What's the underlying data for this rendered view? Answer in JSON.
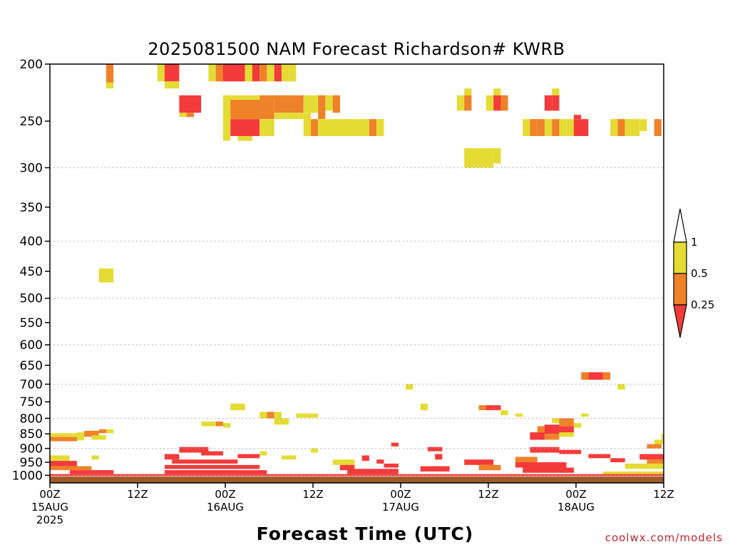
{
  "chart_data": {
    "type": "heatmap",
    "title": "2025081500 NAM Forecast Richardson# KWRB",
    "xlabel": "Forecast Time (UTC)",
    "ylabel": "",
    "y_scale": "log-pressure (hPa), inverted",
    "ylim": [
      1030,
      200
    ],
    "xlim_hours": [
      0,
      84
    ],
    "grid": "dotted horizontal lines at 300, 400, 500, 600, 700, 800, 900, 1000 hPa",
    "y_ticks": [
      200,
      250,
      300,
      350,
      400,
      450,
      500,
      550,
      600,
      650,
      700,
      750,
      800,
      850,
      900,
      950,
      1000
    ],
    "y_tick_labels": [
      "200",
      "250",
      "300",
      "350",
      "400",
      "450",
      "500",
      "550",
      "600",
      "650",
      "700",
      "750",
      "800",
      "850",
      "900",
      "950",
      "1000"
    ],
    "x_ticks": [
      {
        "hour": 0,
        "line1": "00Z",
        "line2": "15AUG",
        "line3": "2025"
      },
      {
        "hour": 12,
        "line1": "12Z",
        "line2": "",
        "line3": ""
      },
      {
        "hour": 24,
        "line1": "00Z",
        "line2": "16AUG",
        "line3": ""
      },
      {
        "hour": 36,
        "line1": "12Z",
        "line2": "",
        "line3": ""
      },
      {
        "hour": 48,
        "line1": "00Z",
        "line2": "17AUG",
        "line3": ""
      },
      {
        "hour": 60,
        "line1": "12Z",
        "line2": "",
        "line3": ""
      },
      {
        "hour": 72,
        "line1": "00Z",
        "line2": "18AUG",
        "line3": ""
      },
      {
        "hour": 84,
        "line1": "12Z",
        "line2": "",
        "line3": ""
      }
    ],
    "colorbar": {
      "levels": [
        {
          "label": "1",
          "value": 1
        },
        {
          "label": "0.5",
          "value": 0.5
        },
        {
          "label": "0.25",
          "value": 0.25
        }
      ],
      "bins": [
        {
          "range": "< 0.25",
          "color": "#f43b3b"
        },
        {
          "range": "0.25 - 0.5",
          "color": "#ef8129"
        },
        {
          "range": "0.5 - 1",
          "color": "#e4dc34"
        },
        {
          "range": "> 1",
          "color": "#ffffff"
        }
      ]
    },
    "ground": {
      "color": "#9e5a28",
      "from_hpa": 1005
    },
    "cells": [
      {
        "t0": 7.7,
        "t1": 8.7,
        "p0": 200,
        "p1": 215,
        "c": "o"
      },
      {
        "t0": 7.7,
        "t1": 8.7,
        "p0": 215,
        "p1": 220,
        "c": "y"
      },
      {
        "t0": 14.7,
        "t1": 15.7,
        "p0": 200,
        "p1": 214,
        "c": "y"
      },
      {
        "t0": 15.7,
        "t1": 17.7,
        "p0": 200,
        "p1": 214,
        "c": "r"
      },
      {
        "t0": 15.7,
        "t1": 17.7,
        "p0": 214,
        "p1": 220,
        "c": "y"
      },
      {
        "t0": 17.7,
        "t1": 20.7,
        "p0": 226,
        "p1": 242,
        "c": "r"
      },
      {
        "t0": 17.7,
        "t1": 18.7,
        "p0": 242,
        "p1": 246,
        "c": "y"
      },
      {
        "t0": 18.7,
        "t1": 19.7,
        "p0": 242,
        "p1": 246,
        "c": "o"
      },
      {
        "t0": 21.7,
        "t1": 22.7,
        "p0": 200,
        "p1": 214,
        "c": "y"
      },
      {
        "t0": 22.7,
        "t1": 23.7,
        "p0": 200,
        "p1": 214,
        "c": "o"
      },
      {
        "t0": 23.7,
        "t1": 26.7,
        "p0": 200,
        "p1": 214,
        "c": "r"
      },
      {
        "t0": 26.7,
        "t1": 27.7,
        "p0": 200,
        "p1": 214,
        "c": "y"
      },
      {
        "t0": 27.7,
        "t1": 28.7,
        "p0": 200,
        "p1": 214,
        "c": "r"
      },
      {
        "t0": 28.7,
        "t1": 29.7,
        "p0": 200,
        "p1": 214,
        "c": "o"
      },
      {
        "t0": 29.7,
        "t1": 30.7,
        "p0": 200,
        "p1": 214,
        "c": "y"
      },
      {
        "t0": 30.7,
        "t1": 31.7,
        "p0": 200,
        "p1": 214,
        "c": "r"
      },
      {
        "t0": 31.7,
        "t1": 32.7,
        "p0": 200,
        "p1": 214,
        "c": "y"
      },
      {
        "t0": 32.7,
        "t1": 33.7,
        "p0": 200,
        "p1": 214,
        "c": "y"
      },
      {
        "t0": 23.7,
        "t1": 24.7,
        "p0": 226,
        "p1": 270,
        "c": "y"
      },
      {
        "t0": 24.7,
        "t1": 28.7,
        "p0": 226,
        "p1": 230,
        "c": "y"
      },
      {
        "t0": 28.7,
        "t1": 34.7,
        "p0": 226,
        "p1": 230,
        "c": "o"
      },
      {
        "t0": 24.7,
        "t1": 30.7,
        "p0": 230,
        "p1": 248,
        "c": "o"
      },
      {
        "t0": 30.7,
        "t1": 34.7,
        "p0": 230,
        "p1": 242,
        "c": "o"
      },
      {
        "t0": 34.7,
        "t1": 36.7,
        "p0": 226,
        "p1": 242,
        "c": "y"
      },
      {
        "t0": 36.7,
        "t1": 37.7,
        "p0": 226,
        "p1": 248,
        "c": "o"
      },
      {
        "t0": 37.7,
        "t1": 38.7,
        "p0": 226,
        "p1": 240,
        "c": "y"
      },
      {
        "t0": 38.7,
        "t1": 39.7,
        "p0": 226,
        "p1": 242,
        "c": "o"
      },
      {
        "t0": 30.7,
        "t1": 34.7,
        "p0": 242,
        "p1": 248,
        "c": "y"
      },
      {
        "t0": 24.7,
        "t1": 28.7,
        "p0": 248,
        "p1": 265,
        "c": "r"
      },
      {
        "t0": 28.7,
        "t1": 30.7,
        "p0": 248,
        "p1": 265,
        "c": "y"
      },
      {
        "t0": 25.7,
        "t1": 27.7,
        "p0": 265,
        "p1": 270,
        "c": "y"
      },
      {
        "t0": 34.7,
        "t1": 35.7,
        "p0": 242,
        "p1": 265,
        "c": "y"
      },
      {
        "t0": 35.7,
        "t1": 36.7,
        "p0": 248,
        "p1": 265,
        "c": "o"
      },
      {
        "t0": 36.7,
        "t1": 43.7,
        "p0": 248,
        "p1": 265,
        "c": "y"
      },
      {
        "t0": 43.7,
        "t1": 44.7,
        "p0": 248,
        "p1": 265,
        "c": "o"
      },
      {
        "t0": 44.7,
        "t1": 45.7,
        "p0": 248,
        "p1": 265,
        "c": "y"
      },
      {
        "t0": 55.7,
        "t1": 56.7,
        "p0": 226,
        "p1": 240,
        "c": "y"
      },
      {
        "t0": 56.7,
        "t1": 57.7,
        "p0": 220,
        "p1": 226,
        "c": "y"
      },
      {
        "t0": 56.7,
        "t1": 57.7,
        "p0": 226,
        "p1": 240,
        "c": "o"
      },
      {
        "t0": 59.7,
        "t1": 60.7,
        "p0": 226,
        "p1": 240,
        "c": "y"
      },
      {
        "t0": 60.7,
        "t1": 61.7,
        "p0": 220,
        "p1": 226,
        "c": "y"
      },
      {
        "t0": 60.7,
        "t1": 61.7,
        "p0": 226,
        "p1": 240,
        "c": "r"
      },
      {
        "t0": 61.7,
        "t1": 62.7,
        "p0": 226,
        "p1": 240,
        "c": "o"
      },
      {
        "t0": 56.7,
        "t1": 60.7,
        "p0": 278,
        "p1": 300,
        "c": "y"
      },
      {
        "t0": 60.7,
        "t1": 61.7,
        "p0": 278,
        "p1": 295,
        "c": "y"
      },
      {
        "t0": 67.7,
        "t1": 68.7,
        "p0": 226,
        "p1": 240,
        "c": "r"
      },
      {
        "t0": 68.7,
        "t1": 69.7,
        "p0": 220,
        "p1": 226,
        "c": "y"
      },
      {
        "t0": 68.7,
        "t1": 69.7,
        "p0": 226,
        "p1": 240,
        "c": "r"
      },
      {
        "t0": 71.7,
        "t1": 72.7,
        "p0": 244,
        "p1": 248,
        "c": "r"
      },
      {
        "t0": 64.7,
        "t1": 65.7,
        "p0": 248,
        "p1": 265,
        "c": "y"
      },
      {
        "t0": 65.7,
        "t1": 66.7,
        "p0": 248,
        "p1": 265,
        "c": "o"
      },
      {
        "t0": 66.7,
        "t1": 67.7,
        "p0": 248,
        "p1": 265,
        "c": "o"
      },
      {
        "t0": 67.7,
        "t1": 68.7,
        "p0": 248,
        "p1": 265,
        "c": "y"
      },
      {
        "t0": 68.7,
        "t1": 69.7,
        "p0": 248,
        "p1": 265,
        "c": "o"
      },
      {
        "t0": 69.7,
        "t1": 70.7,
        "p0": 248,
        "p1": 265,
        "c": "y"
      },
      {
        "t0": 70.7,
        "t1": 71.7,
        "p0": 248,
        "p1": 265,
        "c": "y"
      },
      {
        "t0": 71.7,
        "t1": 73.7,
        "p0": 248,
        "p1": 265,
        "c": "r"
      },
      {
        "t0": 76.7,
        "t1": 77.7,
        "p0": 248,
        "p1": 265,
        "c": "y"
      },
      {
        "t0": 77.7,
        "t1": 78.7,
        "p0": 248,
        "p1": 265,
        "c": "o"
      },
      {
        "t0": 78.7,
        "t1": 80.7,
        "p0": 248,
        "p1": 265,
        "c": "y"
      },
      {
        "t0": 80.7,
        "t1": 81.7,
        "p0": 248,
        "p1": 260,
        "c": "y"
      },
      {
        "t0": 82.7,
        "t1": 83.7,
        "p0": 248,
        "p1": 265,
        "c": "o"
      },
      {
        "t0": 6.7,
        "t1": 8.7,
        "p0": 445,
        "p1": 470,
        "c": "y"
      },
      {
        "t0": 72.7,
        "t1": 73.7,
        "p0": 668,
        "p1": 688,
        "c": "o"
      },
      {
        "t0": 73.7,
        "t1": 75.7,
        "p0": 668,
        "p1": 688,
        "c": "r"
      },
      {
        "t0": 75.7,
        "t1": 76.7,
        "p0": 668,
        "p1": 688,
        "c": "o"
      },
      {
        "t0": 77.7,
        "t1": 78.7,
        "p0": 700,
        "p1": 715,
        "c": "y"
      },
      {
        "t0": 48.7,
        "t1": 49.7,
        "p0": 700,
        "p1": 715,
        "c": "y"
      },
      {
        "t0": 50.7,
        "t1": 51.7,
        "p0": 755,
        "p1": 775,
        "c": "y"
      },
      {
        "t0": 24.7,
        "t1": 26.7,
        "p0": 755,
        "p1": 775,
        "c": "y"
      },
      {
        "t0": 58.7,
        "t1": 59.7,
        "p0": 760,
        "p1": 775,
        "c": "o"
      },
      {
        "t0": 59.7,
        "t1": 60.7,
        "p0": 760,
        "p1": 775,
        "c": "r"
      },
      {
        "t0": 60.7,
        "t1": 61.7,
        "p0": 760,
        "p1": 775,
        "c": "r"
      },
      {
        "t0": 61.7,
        "t1": 62.7,
        "p0": 775,
        "p1": 790,
        "c": "y"
      },
      {
        "t0": 63.7,
        "t1": 64.7,
        "p0": 785,
        "p1": 795,
        "c": "y"
      },
      {
        "t0": 72.7,
        "t1": 73.7,
        "p0": 785,
        "p1": 795,
        "c": "y"
      },
      {
        "t0": 28.7,
        "t1": 29.7,
        "p0": 780,
        "p1": 800,
        "c": "y"
      },
      {
        "t0": 29.7,
        "t1": 30.7,
        "p0": 780,
        "p1": 800,
        "c": "o"
      },
      {
        "t0": 30.7,
        "t1": 31.7,
        "p0": 780,
        "p1": 800,
        "c": "y"
      },
      {
        "t0": 30.7,
        "t1": 32.7,
        "p0": 800,
        "p1": 820,
        "c": "y"
      },
      {
        "t0": 33.7,
        "t1": 36.7,
        "p0": 785,
        "p1": 798,
        "c": "y"
      },
      {
        "t0": 20.7,
        "t1": 22.7,
        "p0": 810,
        "p1": 825,
        "c": "y"
      },
      {
        "t0": 22.7,
        "t1": 23.7,
        "p0": 810,
        "p1": 825,
        "c": "o"
      },
      {
        "t0": 23.7,
        "t1": 24.7,
        "p0": 815,
        "p1": 830,
        "c": "y"
      },
      {
        "t0": 0,
        "t1": 3.7,
        "p0": 848,
        "p1": 860,
        "c": "y"
      },
      {
        "t0": 0,
        "t1": 1.7,
        "p0": 860,
        "p1": 875,
        "c": "o"
      },
      {
        "t0": 1.7,
        "t1": 3.7,
        "p0": 860,
        "p1": 875,
        "c": "o"
      },
      {
        "t0": 3.7,
        "t1": 4.7,
        "p0": 845,
        "p1": 872,
        "c": "y"
      },
      {
        "t0": 4.7,
        "t1": 6.7,
        "p0": 840,
        "p1": 860,
        "c": "o"
      },
      {
        "t0": 6.7,
        "t1": 7.7,
        "p0": 835,
        "p1": 848,
        "c": "o"
      },
      {
        "t0": 7.7,
        "t1": 8.7,
        "p0": 835,
        "p1": 848,
        "c": "y"
      },
      {
        "t0": 5.7,
        "t1": 7.7,
        "p0": 855,
        "p1": 870,
        "c": "y"
      },
      {
        "t0": 68.7,
        "t1": 69.7,
        "p0": 800,
        "p1": 815,
        "c": "y"
      },
      {
        "t0": 69.7,
        "t1": 71.7,
        "p0": 800,
        "p1": 825,
        "c": "o"
      },
      {
        "t0": 71.7,
        "t1": 72.7,
        "p0": 815,
        "p1": 830,
        "c": "y"
      },
      {
        "t0": 66.7,
        "t1": 67.7,
        "p0": 825,
        "p1": 845,
        "c": "o"
      },
      {
        "t0": 67.7,
        "t1": 69.7,
        "p0": 820,
        "p1": 850,
        "c": "r"
      },
      {
        "t0": 69.7,
        "t1": 71.7,
        "p0": 825,
        "p1": 845,
        "c": "r"
      },
      {
        "t0": 65.7,
        "t1": 67.7,
        "p0": 845,
        "p1": 870,
        "c": "r"
      },
      {
        "t0": 67.7,
        "t1": 69.7,
        "p0": 850,
        "p1": 870,
        "c": "o"
      },
      {
        "t0": 69.7,
        "t1": 71.7,
        "p0": 845,
        "p1": 860,
        "c": "y"
      },
      {
        "t0": 83.7,
        "t1": 84,
        "p0": 850,
        "p1": 870,
        "c": "y"
      },
      {
        "t0": 82.7,
        "t1": 84,
        "p0": 870,
        "p1": 885,
        "c": "y"
      },
      {
        "t0": 81.7,
        "t1": 83.7,
        "p0": 885,
        "p1": 900,
        "c": "o"
      },
      {
        "t0": 0,
        "t1": 2.7,
        "p0": 925,
        "p1": 945,
        "c": "y"
      },
      {
        "t0": 0,
        "t1": 3.7,
        "p0": 945,
        "p1": 965,
        "c": "r"
      },
      {
        "t0": 0,
        "t1": 5.7,
        "p0": 965,
        "p1": 980,
        "c": "o"
      },
      {
        "t0": 2.7,
        "t1": 8.7,
        "p0": 980,
        "p1": 995,
        "c": "r"
      },
      {
        "t0": 5.7,
        "t1": 6.7,
        "p0": 925,
        "p1": 940,
        "c": "y"
      },
      {
        "t0": 15.7,
        "t1": 17.7,
        "p0": 920,
        "p1": 940,
        "c": "r"
      },
      {
        "t0": 17.7,
        "t1": 21.7,
        "p0": 895,
        "p1": 915,
        "c": "r"
      },
      {
        "t0": 16.7,
        "t1": 25.7,
        "p0": 940,
        "p1": 955,
        "c": "r"
      },
      {
        "t0": 15.7,
        "t1": 28.7,
        "p0": 960,
        "p1": 975,
        "c": "r"
      },
      {
        "t0": 15.7,
        "t1": 29.7,
        "p0": 980,
        "p1": 995,
        "c": "r"
      },
      {
        "t0": 20.7,
        "t1": 23.7,
        "p0": 910,
        "p1": 925,
        "c": "r"
      },
      {
        "t0": 25.7,
        "t1": 28.7,
        "p0": 920,
        "p1": 935,
        "c": "r"
      },
      {
        "t0": 28.7,
        "t1": 29.7,
        "p0": 910,
        "p1": 925,
        "c": "y"
      },
      {
        "t0": 31.7,
        "t1": 33.7,
        "p0": 925,
        "p1": 940,
        "c": "y"
      },
      {
        "t0": 35.7,
        "t1": 36.7,
        "p0": 900,
        "p1": 915,
        "c": "y"
      },
      {
        "t0": 38.7,
        "t1": 41.7,
        "p0": 940,
        "p1": 960,
        "c": "y"
      },
      {
        "t0": 39.7,
        "t1": 41.7,
        "p0": 960,
        "p1": 980,
        "c": "r"
      },
      {
        "t0": 40.7,
        "t1": 47.7,
        "p0": 975,
        "p1": 995,
        "c": "r"
      },
      {
        "t0": 42.7,
        "t1": 43.7,
        "p0": 925,
        "p1": 945,
        "c": "r"
      },
      {
        "t0": 44.7,
        "t1": 45.7,
        "p0": 940,
        "p1": 955,
        "c": "r"
      },
      {
        "t0": 46.7,
        "t1": 47.7,
        "p0": 880,
        "p1": 893,
        "c": "r"
      },
      {
        "t0": 45.7,
        "t1": 47.7,
        "p0": 955,
        "p1": 970,
        "c": "r"
      },
      {
        "t0": 51.7,
        "t1": 53.7,
        "p0": 895,
        "p1": 910,
        "c": "r"
      },
      {
        "t0": 52.7,
        "t1": 53.7,
        "p0": 920,
        "p1": 940,
        "c": "r"
      },
      {
        "t0": 50.7,
        "t1": 54.7,
        "p0": 965,
        "p1": 985,
        "c": "r"
      },
      {
        "t0": 56.7,
        "t1": 60.7,
        "p0": 940,
        "p1": 960,
        "c": "r"
      },
      {
        "t0": 58.7,
        "t1": 61.7,
        "p0": 960,
        "p1": 980,
        "c": "o"
      },
      {
        "t0": 63.7,
        "t1": 66.7,
        "p0": 930,
        "p1": 950,
        "c": "o"
      },
      {
        "t0": 63.7,
        "t1": 70.7,
        "p0": 950,
        "p1": 970,
        "c": "r"
      },
      {
        "t0": 64.7,
        "t1": 71.7,
        "p0": 970,
        "p1": 990,
        "c": "r"
      },
      {
        "t0": 65.7,
        "t1": 69.7,
        "p0": 895,
        "p1": 915,
        "c": "r"
      },
      {
        "t0": 69.7,
        "t1": 72.7,
        "p0": 905,
        "p1": 920,
        "c": "r"
      },
      {
        "t0": 73.7,
        "t1": 76.7,
        "p0": 920,
        "p1": 935,
        "c": "r"
      },
      {
        "t0": 76.7,
        "t1": 78.7,
        "p0": 935,
        "p1": 950,
        "c": "r"
      },
      {
        "t0": 78.7,
        "t1": 84,
        "p0": 955,
        "p1": 975,
        "c": "y"
      },
      {
        "t0": 80.7,
        "t1": 84,
        "p0": 920,
        "p1": 940,
        "c": "r"
      },
      {
        "t0": 81.7,
        "t1": 84,
        "p0": 940,
        "p1": 955,
        "c": "o"
      },
      {
        "t0": 75.7,
        "t1": 84,
        "p0": 985,
        "p1": 1000,
        "c": "y"
      },
      {
        "t0": 0,
        "t1": 84,
        "p0": 995,
        "p1": 1003,
        "c": "r"
      }
    ]
  },
  "credit": "coolwx.com/models"
}
